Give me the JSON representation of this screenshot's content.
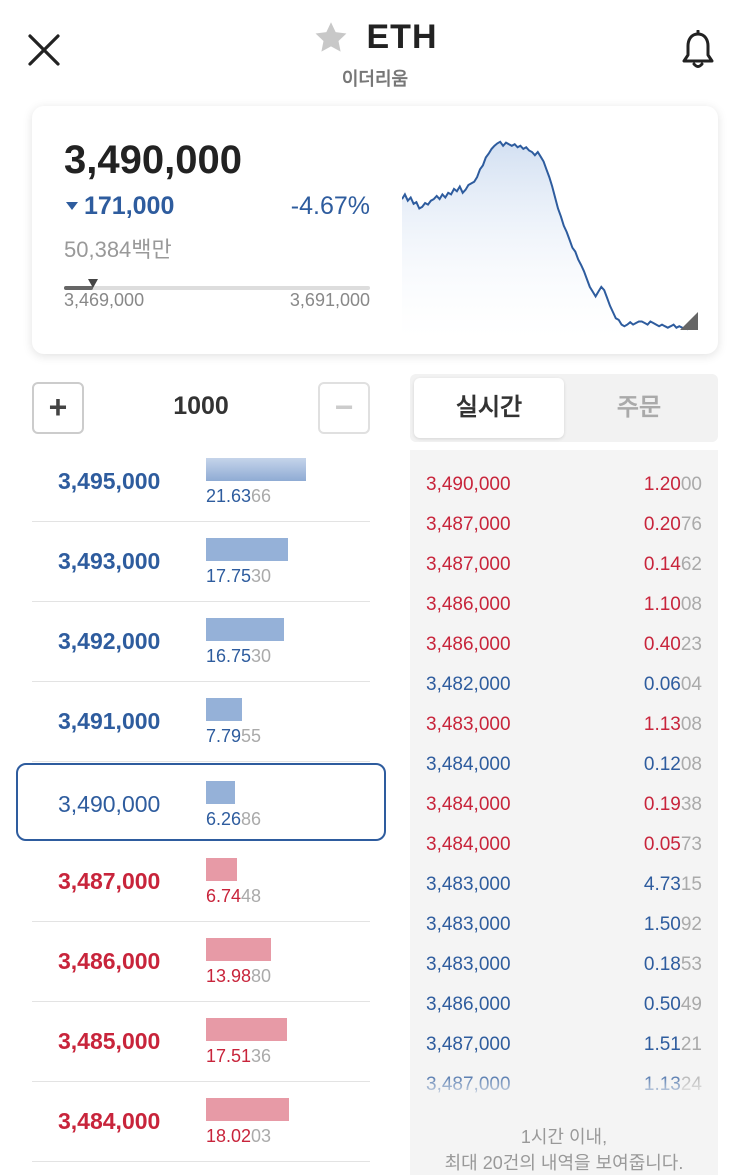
{
  "header": {
    "symbol": "ETH",
    "name": "이더리움"
  },
  "summary": {
    "price": "3,490,000",
    "change_value": "171,000",
    "change_percent": "-4.67%",
    "volume": "50,384백만",
    "range_low": "3,469,000",
    "range_high": "3,691,000",
    "range_position": 0.095,
    "change_color": "#2e5c9e"
  },
  "chart_data": {
    "type": "area",
    "x": [
      0,
      1,
      2,
      3,
      4,
      5,
      6,
      7,
      8,
      9,
      10,
      11,
      12,
      13,
      14,
      15,
      16,
      17,
      18,
      19,
      20,
      21,
      22,
      23,
      24,
      25,
      26,
      27,
      28,
      29,
      30,
      31,
      32,
      33,
      34,
      35,
      36,
      37,
      38,
      39,
      40,
      41,
      42,
      43,
      44,
      45,
      46,
      47,
      48,
      49,
      50,
      51,
      52,
      53,
      54,
      55,
      56,
      57,
      58,
      59,
      60,
      61,
      62,
      63,
      64,
      65,
      66,
      67,
      68,
      69,
      70,
      71,
      72,
      73,
      74,
      75,
      76,
      77,
      78,
      79,
      80,
      81,
      82,
      83,
      84,
      85,
      86,
      87,
      88,
      89,
      90,
      91,
      92,
      93,
      94,
      95,
      96,
      97,
      98,
      99
    ],
    "values": [
      3612,
      3618,
      3610,
      3614,
      3606,
      3608,
      3600,
      3602,
      3607,
      3605,
      3610,
      3612,
      3616,
      3612,
      3618,
      3614,
      3620,
      3618,
      3625,
      3622,
      3628,
      3620,
      3624,
      3630,
      3632,
      3634,
      3640,
      3650,
      3655,
      3665,
      3670,
      3676,
      3680,
      3683,
      3685,
      3680,
      3684,
      3682,
      3680,
      3682,
      3678,
      3680,
      3676,
      3678,
      3674,
      3672,
      3668,
      3672,
      3666,
      3660,
      3650,
      3640,
      3628,
      3614,
      3600,
      3590,
      3578,
      3570,
      3560,
      3550,
      3545,
      3535,
      3528,
      3520,
      3510,
      3500,
      3494,
      3488,
      3494,
      3500,
      3496,
      3486,
      3476,
      3468,
      3460,
      3458,
      3452,
      3450,
      3452,
      3455,
      3452,
      3454,
      3456,
      3456,
      3454,
      3452,
      3456,
      3454,
      3452,
      3450,
      3452,
      3450,
      3448,
      3450,
      3452,
      3448,
      3450,
      3448,
      3447,
      3446
    ],
    "line_color": "#2e5c9e",
    "ylim": [
      3440,
      3695
    ]
  },
  "stepper": {
    "value": "1000",
    "plus_label": "+",
    "minus_label": "−"
  },
  "orderbook": {
    "asks": [
      {
        "price": "3,495,000",
        "qty_main": "21.63",
        "qty_dim": "66",
        "fraction": 1.0
      },
      {
        "price": "3,493,000",
        "qty_main": "17.75",
        "qty_dim": "30",
        "fraction": 0.82
      },
      {
        "price": "3,492,000",
        "qty_main": "16.75",
        "qty_dim": "30",
        "fraction": 0.78
      },
      {
        "price": "3,491,000",
        "qty_main": "7.79",
        "qty_dim": "55",
        "fraction": 0.36
      }
    ],
    "current": {
      "price": "3,490,000",
      "qty_main": "6.26",
      "qty_dim": "86",
      "fraction": 0.29
    },
    "bids": [
      {
        "price": "3,487,000",
        "qty_main": "6.74",
        "qty_dim": "48",
        "fraction": 0.31
      },
      {
        "price": "3,486,000",
        "qty_main": "13.98",
        "qty_dim": "80",
        "fraction": 0.65
      },
      {
        "price": "3,485,000",
        "qty_main": "17.51",
        "qty_dim": "36",
        "fraction": 0.81
      },
      {
        "price": "3,484,000",
        "qty_main": "18.02",
        "qty_dim": "03",
        "fraction": 0.83
      }
    ]
  },
  "tabs": {
    "realtime": "실시간",
    "order": "주문"
  },
  "trades": [
    {
      "price": "3,490,000",
      "qty_main": "1.20",
      "qty_dim": "00",
      "side": "sell"
    },
    {
      "price": "3,487,000",
      "qty_main": "0.20",
      "qty_dim": "76",
      "side": "sell"
    },
    {
      "price": "3,487,000",
      "qty_main": "0.14",
      "qty_dim": "62",
      "side": "sell"
    },
    {
      "price": "3,486,000",
      "qty_main": "1.10",
      "qty_dim": "08",
      "side": "sell"
    },
    {
      "price": "3,486,000",
      "qty_main": "0.40",
      "qty_dim": "23",
      "side": "sell"
    },
    {
      "price": "3,482,000",
      "qty_main": "0.06",
      "qty_dim": "04",
      "side": "buy"
    },
    {
      "price": "3,483,000",
      "qty_main": "1.13",
      "qty_dim": "08",
      "side": "sell"
    },
    {
      "price": "3,484,000",
      "qty_main": "0.12",
      "qty_dim": "08",
      "side": "buy"
    },
    {
      "price": "3,484,000",
      "qty_main": "0.19",
      "qty_dim": "38",
      "side": "sell"
    },
    {
      "price": "3,484,000",
      "qty_main": "0.05",
      "qty_dim": "73",
      "side": "sell"
    },
    {
      "price": "3,483,000",
      "qty_main": "4.73",
      "qty_dim": "15",
      "side": "buy"
    },
    {
      "price": "3,483,000",
      "qty_main": "1.50",
      "qty_dim": "92",
      "side": "buy"
    },
    {
      "price": "3,483,000",
      "qty_main": "0.18",
      "qty_dim": "53",
      "side": "buy"
    },
    {
      "price": "3,486,000",
      "qty_main": "0.50",
      "qty_dim": "49",
      "side": "buy"
    },
    {
      "price": "3,487,000",
      "qty_main": "1.51",
      "qty_dim": "21",
      "side": "buy"
    },
    {
      "price": "3,487,000",
      "qty_main": "1.13",
      "qty_dim": "24",
      "side": "buy"
    }
  ],
  "trades_note": {
    "line1": "1시간 이내,",
    "line2": "최대 20건의 내역을 보여줍니다."
  },
  "colors": {
    "ask": "#2e5c9e",
    "bid": "#c8243b"
  },
  "icons": [
    "close-icon",
    "star-icon",
    "bell-icon",
    "expand-chart-icon"
  ]
}
